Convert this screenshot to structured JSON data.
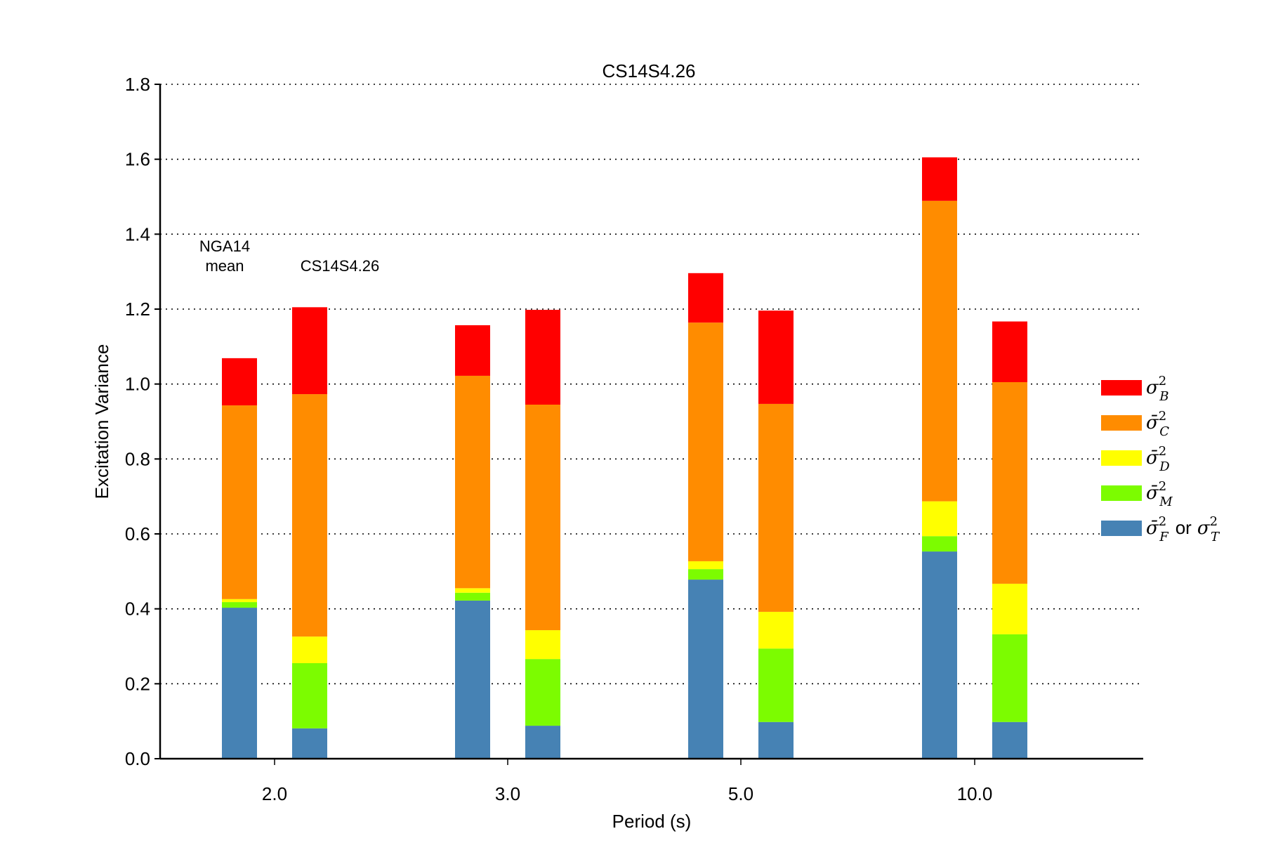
{
  "chart_data": {
    "type": "bar",
    "stacked": true,
    "title": "CS14S4.26",
    "xlabel": "Period (s)",
    "ylabel": "Excitation Variance",
    "ylim": [
      0,
      1.8
    ],
    "yticks": [
      "0.0",
      "0.2",
      "0.4",
      "0.6",
      "0.8",
      "1.0",
      "1.2",
      "1.4",
      "1.6",
      "1.8"
    ],
    "categories": [
      "2.0",
      "3.0",
      "5.0",
      "10.0"
    ],
    "grid": "horizontal-dotted",
    "legend_position": "right",
    "bar_labels": [
      "NGA14 mean",
      "CS14S4.26"
    ],
    "annotations": {
      "nga_line1": "NGA14",
      "nga_line2": "mean",
      "cs": "CS14S4.26"
    },
    "components": [
      {
        "key": "F",
        "legend": "σ̄²_F or σ²_T",
        "color": "#4682b4"
      },
      {
        "key": "M",
        "legend": "σ̄²_M",
        "color": "#7cfc00"
      },
      {
        "key": "D",
        "legend": "σ̄²_D",
        "color": "#ffff00"
      },
      {
        "key": "C",
        "legend": "σ̄²_C",
        "color": "#ff8c00"
      },
      {
        "key": "B",
        "legend": "σ²_B",
        "color": "#ff0000"
      }
    ],
    "cumulative_tops": {
      "NGA14 mean": {
        "2.0": [
          0.403,
          0.418,
          0.426,
          0.943,
          1.069
        ],
        "3.0": [
          0.422,
          0.443,
          0.455,
          1.022,
          1.157
        ],
        "5.0": [
          0.478,
          0.506,
          0.527,
          1.164,
          1.296
        ],
        "10.0": [
          0.553,
          0.594,
          0.687,
          1.489,
          1.605
        ]
      },
      "CS14S4.26": {
        "2.0": [
          0.081,
          0.255,
          0.326,
          0.973,
          1.205
        ],
        "3.0": [
          0.088,
          0.266,
          0.343,
          0.945,
          1.198
        ],
        "5.0": [
          0.098,
          0.294,
          0.392,
          0.947,
          1.196
        ],
        "10.0": [
          0.098,
          0.332,
          0.467,
          1.005,
          1.167
        ]
      }
    },
    "series": [
      {
        "name": "σ̄²_F or σ²_T",
        "NGA14 mean": [
          0.403,
          0.422,
          0.478,
          0.553
        ],
        "CS14S4.26": [
          0.081,
          0.088,
          0.098,
          0.098
        ]
      },
      {
        "name": "σ̄²_M",
        "NGA14 mean": [
          0.015,
          0.021,
          0.028,
          0.041
        ],
        "CS14S4.26": [
          0.174,
          0.178,
          0.196,
          0.234
        ]
      },
      {
        "name": "σ̄²_D",
        "NGA14 mean": [
          0.008,
          0.012,
          0.021,
          0.093
        ],
        "CS14S4.26": [
          0.071,
          0.077,
          0.098,
          0.135
        ]
      },
      {
        "name": "σ̄²_C",
        "NGA14 mean": [
          0.517,
          0.567,
          0.637,
          0.802
        ],
        "CS14S4.26": [
          0.647,
          0.602,
          0.555,
          0.538
        ]
      },
      {
        "name": "σ²_B",
        "NGA14 mean": [
          0.126,
          0.135,
          0.132,
          0.116
        ],
        "CS14S4.26": [
          0.232,
          0.253,
          0.249,
          0.162
        ]
      }
    ]
  }
}
